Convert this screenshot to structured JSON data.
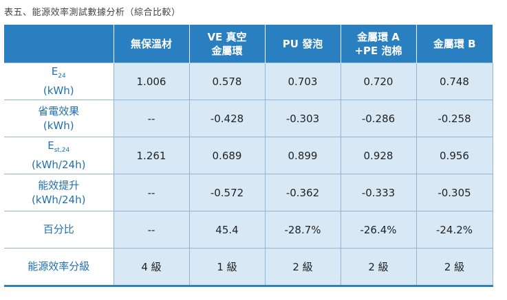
{
  "caption": "表五、能源效率測試數據分析（綜合比較）",
  "header": {
    "corner": "",
    "cols": [
      {
        "lines": [
          "無保溫材"
        ]
      },
      {
        "lines": [
          "VE 真空",
          "金屬環"
        ]
      },
      {
        "lines": [
          "PU 發泡"
        ]
      },
      {
        "lines": [
          "金屬環 A",
          "+PE 泡棉"
        ]
      },
      {
        "lines": [
          "金屬環 B"
        ]
      }
    ]
  },
  "rows": [
    {
      "label": {
        "main": "E",
        "sub": "24",
        "unit": "(kWh)"
      },
      "values": [
        "1.006",
        "0.578",
        "0.703",
        "0.720",
        "0.748"
      ]
    },
    {
      "label": {
        "main": "省電效果",
        "sub": "",
        "unit": "(kWh)"
      },
      "values": [
        "--",
        "-0.428",
        "-0.303",
        "-0.286",
        "-0.258"
      ]
    },
    {
      "label": {
        "main": "E",
        "sub": "st,24",
        "unit": "(kWh/24h)"
      },
      "values": [
        "1.261",
        "0.689",
        "0.899",
        "0.928",
        "0.956"
      ]
    },
    {
      "label": {
        "main": "能效提升",
        "sub": "",
        "unit": "(kWh/24h)"
      },
      "values": [
        "--",
        "-0.572",
        "-0.362",
        "-0.333",
        "-0.305"
      ]
    },
    {
      "label": {
        "main": "百分比",
        "sub": "",
        "unit": ""
      },
      "values": [
        "--",
        "45.4",
        "-28.7%",
        "-26.4%",
        "-24.2%"
      ]
    },
    {
      "label": {
        "main": "能源效率分級",
        "sub": "",
        "unit": ""
      },
      "values": [
        "4 級",
        "1 級",
        "2 級",
        "2 級",
        "2 級"
      ]
    }
  ],
  "colors": {
    "header_bg": "#2a7fc1",
    "cell_bg": "#d9e8f5",
    "label_text": "#1f6fb2"
  }
}
